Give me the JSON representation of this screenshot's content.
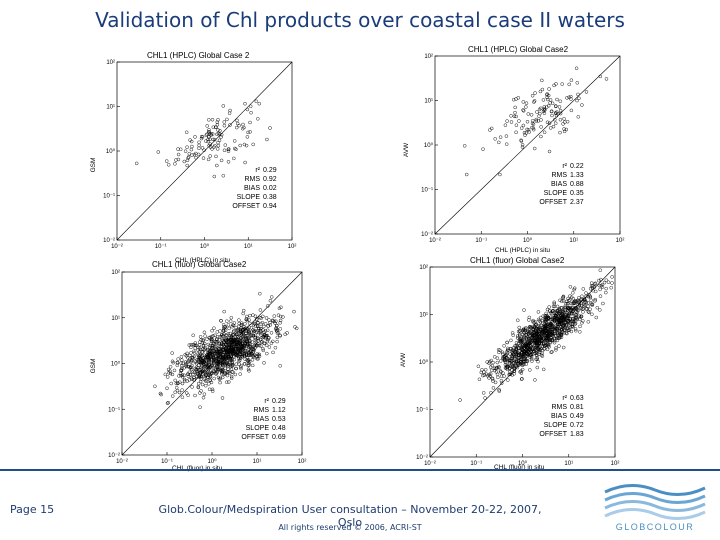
{
  "slide": {
    "title": "Validation of Chl products over coastal case II waters"
  },
  "footer": {
    "page": "Page 15",
    "event": "Glob.Colour/Medspiration User consultation – November 20-22, 2007, Oslo",
    "rights": "All rights reserved © 2006, ACRI-ST",
    "logo_text": "GLOBCOLOUR"
  },
  "colors": {
    "title": "#1a3c7a",
    "footer_line": "#1f4e8c",
    "logo_blue": "#4a8fc4"
  },
  "chart_data": [
    {
      "type": "scatter",
      "title": "CHL1 (HPLC) Global Case 2",
      "xlabel": "CHL (HPLC) in situ",
      "ylabel": "GSM",
      "xlim_log10": [
        -2,
        2
      ],
      "ylim_log10": [
        -2,
        2
      ],
      "ticks": [
        "10⁻²",
        "10⁻¹",
        "10⁰",
        "10¹",
        "10²"
      ],
      "reference_line": "1:1",
      "stats": {
        "labels": [
          "r²",
          "RMS",
          "BIAS",
          "SLOPE",
          "OFFSET"
        ],
        "values": [
          "0.29",
          "0.92",
          "0.02",
          "0.38",
          "0.94"
        ]
      },
      "cloud": {
        "n": 130,
        "x_mean_log10": 0.2,
        "x_sd": 0.5,
        "slope": 0.38,
        "offset_log10": 0.2,
        "noise_sd": 0.3
      }
    },
    {
      "type": "scatter",
      "title": "CHL1 (HPLC) Global Case2",
      "xlabel": "CHL (HPLC) in situ",
      "ylabel": "AVW",
      "xlim_log10": [
        -2,
        2
      ],
      "ylim_log10": [
        -2,
        2
      ],
      "ticks": [
        "10⁻²",
        "10⁻¹",
        "10⁰",
        "10¹",
        "10²"
      ],
      "reference_line": "1:1",
      "stats": {
        "labels": [
          "r²",
          "RMS",
          "BIAS",
          "SLOPE",
          "OFFSET"
        ],
        "values": [
          "0.22",
          "1.33",
          "0.88",
          "0.35",
          "2.37"
        ]
      },
      "cloud": {
        "n": 140,
        "x_mean_log10": 0.3,
        "x_sd": 0.5,
        "slope": 0.35,
        "offset_log10": 0.6,
        "noise_sd": 0.35
      }
    },
    {
      "type": "scatter",
      "title": "CHL1 (fluor) Global Case2",
      "xlabel": "CHL (fluor) in situ",
      "ylabel": "GSM",
      "xlim_log10": [
        -2,
        2
      ],
      "ylim_log10": [
        -2,
        2
      ],
      "ticks": [
        "10⁻²",
        "10⁻¹",
        "10⁰",
        "10¹",
        "10²"
      ],
      "reference_line": "1:1",
      "stats": {
        "labels": [
          "r²",
          "RMS",
          "BIAS",
          "SLOPE",
          "OFFSET"
        ],
        "values": [
          "0.29",
          "1.12",
          "0.53",
          "0.48",
          "0.69"
        ]
      },
      "cloud": {
        "n": 1100,
        "x_mean_log10": 0.3,
        "x_sd": 0.55,
        "slope": 0.48,
        "offset_log10": 0.1,
        "noise_sd": 0.28
      }
    },
    {
      "type": "scatter",
      "title": "CHL1 (fluor) Global Case2",
      "xlabel": "CHL (fluor) in situ",
      "ylabel": "AVW",
      "xlim_log10": [
        -2,
        2
      ],
      "ylim_log10": [
        -2,
        2
      ],
      "ticks": [
        "10⁻²",
        "10⁻¹",
        "10⁰",
        "10¹",
        "10²"
      ],
      "reference_line": "1:1",
      "stats": {
        "labels": [
          "r²",
          "RMS",
          "BIAS",
          "SLOPE",
          "OFFSET"
        ],
        "values": [
          "0.63",
          "0.81",
          "0.49",
          "0.72",
          "1.83"
        ]
      },
      "cloud": {
        "n": 1100,
        "x_mean_log10": 0.4,
        "x_sd": 0.55,
        "slope": 0.72,
        "offset_log10": 0.25,
        "noise_sd": 0.22
      }
    }
  ]
}
